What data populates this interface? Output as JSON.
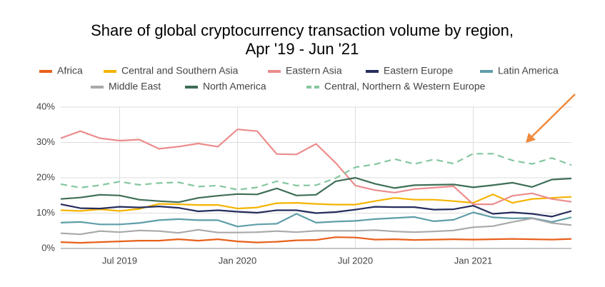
{
  "chart_data": {
    "type": "line",
    "title": [
      "Share of global cryptocurrency transaction volume by region,",
      "Apr '19 - Jun '21"
    ],
    "x": [
      "2019-04",
      "2019-05",
      "2019-06",
      "2019-07",
      "2019-08",
      "2019-09",
      "2019-10",
      "2019-11",
      "2019-12",
      "2020-01",
      "2020-02",
      "2020-03",
      "2020-04",
      "2020-05",
      "2020-06",
      "2020-07",
      "2020-08",
      "2020-09",
      "2020-10",
      "2020-11",
      "2020-12",
      "2021-01",
      "2021-02",
      "2021-03",
      "2021-04",
      "2021-05",
      "2021-06"
    ],
    "xticks": [
      {
        "value": "2019-07",
        "label": "Jul 2019"
      },
      {
        "value": "2020-01",
        "label": "Jan 2020"
      },
      {
        "value": "2020-07",
        "label": "Jul 2020"
      },
      {
        "value": "2021-01",
        "label": "Jan 2021"
      }
    ],
    "ylim": [
      0,
      40
    ],
    "yticks": [
      {
        "value": 0,
        "label": "0%"
      },
      {
        "value": 10,
        "label": "10%"
      },
      {
        "value": 20,
        "label": "20%"
      },
      {
        "value": 30,
        "label": "30%"
      },
      {
        "value": 40,
        "label": "40%"
      }
    ],
    "grid": true,
    "legend": "top",
    "series": [
      {
        "name": "Africa",
        "color": "#e8601c",
        "values": [
          1.8,
          1.6,
          1.8,
          2.0,
          2.2,
          2.2,
          2.6,
          2.2,
          2.6,
          2.0,
          1.7,
          1.9,
          2.3,
          2.4,
          3.2,
          3.1,
          2.5,
          2.6,
          2.4,
          2.5,
          2.6,
          2.5,
          2.6,
          2.7,
          2.6,
          2.5,
          2.7
        ]
      },
      {
        "name": "Central and Southern Asia",
        "color": "#f4b400",
        "values": [
          10.8,
          10.6,
          11.1,
          10.6,
          11.2,
          12.6,
          12.5,
          12.3,
          12.3,
          11.3,
          11.6,
          12.8,
          12.9,
          12.6,
          12.4,
          12.4,
          13.4,
          14.3,
          13.8,
          13.8,
          13.4,
          12.9,
          15.3,
          12.9,
          14.0,
          14.3,
          14.6
        ]
      },
      {
        "name": "Eastern Asia",
        "color": "#ec8c8c",
        "values": [
          31.2,
          33.2,
          31.2,
          30.5,
          30.8,
          28.2,
          28.8,
          29.7,
          28.8,
          33.7,
          33.2,
          26.7,
          26.6,
          29.6,
          24.2,
          17.8,
          16.5,
          15.8,
          16.8,
          17.2,
          17.6,
          12.5,
          12.5,
          14.9,
          15.6,
          14.0,
          13.2
        ]
      },
      {
        "name": "Eastern Europe",
        "color": "#262d5e",
        "values": [
          12.5,
          11.4,
          11.3,
          11.8,
          11.6,
          11.9,
          11.5,
          10.5,
          10.8,
          10.4,
          10.1,
          10.8,
          10.8,
          10.0,
          10.3,
          11.0,
          11.8,
          11.7,
          11.7,
          11.0,
          11.1,
          12.1,
          9.8,
          10.2,
          9.8,
          9.0,
          10.6
        ]
      },
      {
        "name": "Latin America",
        "color": "#5f9ea9",
        "values": [
          7.3,
          7.5,
          6.8,
          6.8,
          7.2,
          8.0,
          8.3,
          8.0,
          8.0,
          6.2,
          6.8,
          7.0,
          9.8,
          7.3,
          7.6,
          7.8,
          8.3,
          8.6,
          8.9,
          7.7,
          8.1,
          10.2,
          8.8,
          8.5,
          8.6,
          7.5,
          8.8
        ]
      },
      {
        "name": "Middle East",
        "color": "#a9a9a9",
        "values": [
          4.3,
          4.0,
          4.9,
          4.6,
          5.1,
          4.9,
          4.4,
          5.3,
          4.5,
          4.5,
          4.6,
          4.9,
          4.6,
          5.0,
          5.0,
          5.0,
          5.2,
          4.8,
          4.6,
          4.8,
          5.1,
          6.0,
          6.3,
          7.5,
          8.5,
          7.2,
          6.6
        ]
      },
      {
        "name": "North America",
        "color": "#3e6e56",
        "values": [
          14.0,
          14.4,
          15.2,
          15.0,
          13.8,
          13.4,
          13.1,
          14.3,
          14.9,
          15.4,
          15.3,
          17.0,
          15.0,
          15.2,
          19.0,
          20.0,
          18.3,
          17.1,
          17.9,
          18.0,
          18.1,
          17.3,
          17.9,
          18.6,
          17.4,
          19.5,
          19.8
        ]
      },
      {
        "name": "Central, Northern & Western Europe",
        "color": "#85c7a0",
        "dashed": true,
        "values": [
          18.2,
          17.2,
          17.9,
          18.9,
          18.0,
          18.5,
          18.7,
          17.5,
          17.8,
          16.6,
          17.3,
          19.0,
          17.8,
          17.9,
          19.9,
          23.0,
          23.8,
          25.3,
          23.9,
          25.2,
          24.0,
          26.8,
          26.8,
          24.9,
          23.9,
          25.6,
          23.6
        ]
      }
    ]
  }
}
